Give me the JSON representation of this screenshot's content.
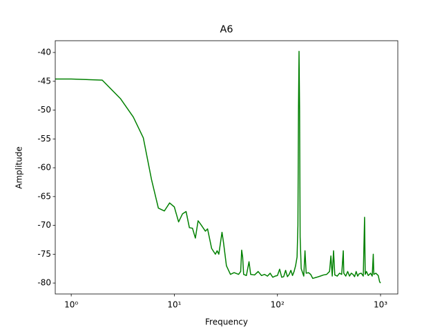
{
  "chart_data": {
    "type": "line",
    "title": "A6",
    "x_label": "Frequency",
    "y_label": "Amplitude",
    "x_scale": "log",
    "xlim": [
      0.7,
      1470
    ],
    "ylim": [
      -81.9,
      -37.96
    ],
    "xticks": [
      {
        "value": 1,
        "label": "10⁰"
      },
      {
        "value": 10,
        "label": "10¹"
      },
      {
        "value": 100,
        "label": "10²"
      },
      {
        "value": 1000,
        "label": "10³"
      }
    ],
    "yticks": [
      -40,
      -45,
      -50,
      -55,
      -60,
      -65,
      -70,
      -75,
      -80
    ],
    "series": [
      {
        "color": "#008000",
        "x": [
          0.7,
          1,
          2,
          3,
          4,
          5,
          6,
          7,
          8,
          9,
          10,
          11,
          12,
          13,
          14,
          15,
          16,
          17,
          18,
          20,
          21,
          23,
          25,
          26,
          27,
          29,
          30,
          32,
          35,
          38,
          42,
          44,
          45,
          46,
          47,
          50,
          53,
          55,
          60,
          65,
          70,
          75,
          80,
          85,
          90,
          95,
          100,
          105,
          110,
          115,
          120,
          125,
          130,
          135,
          140,
          145,
          150,
          155,
          158,
          160,
          162,
          164,
          166,
          170,
          180,
          185,
          190,
          200,
          210,
          220,
          240,
          260,
          280,
          300,
          320,
          330,
          340,
          350,
          360,
          380,
          400,
          420,
          435,
          440,
          460,
          480,
          500,
          520,
          540,
          560,
          580,
          600,
          620,
          650,
          680,
          700,
          710,
          730,
          760,
          800,
          830,
          850,
          860,
          900,
          950,
          980,
          1000
        ],
        "values": [
          -44.6,
          -44.6,
          -44.8,
          -48,
          -51.2,
          -54.8,
          -62,
          -67,
          -67.5,
          -66.1,
          -66.8,
          -69.4,
          -68,
          -67.6,
          -70.4,
          -70.5,
          -72.2,
          -69.2,
          -69.8,
          -71,
          -70.6,
          -74,
          -75,
          -74.4,
          -75,
          -71.2,
          -73,
          -77,
          -78.5,
          -78.2,
          -78.5,
          -78,
          -74.3,
          -75.5,
          -78.5,
          -78.7,
          -76.3,
          -78.5,
          -78.6,
          -78,
          -78.7,
          -78.5,
          -78.8,
          -78.3,
          -79,
          -78.8,
          -78.7,
          -77.6,
          -79,
          -78.9,
          -77.8,
          -78.9,
          -78.5,
          -77.8,
          -78.7,
          -78,
          -77,
          -75.5,
          -70,
          -50,
          -39.8,
          -50,
          -72,
          -77.5,
          -78.8,
          -74.4,
          -78.3,
          -78.2,
          -78.5,
          -79.2,
          -79,
          -78.8,
          -78.6,
          -78.5,
          -78,
          -75.3,
          -78.8,
          -74.4,
          -78.6,
          -78.8,
          -78.3,
          -78.5,
          -74.4,
          -78.3,
          -78.8,
          -78,
          -78.8,
          -78.3,
          -78.5,
          -78.9,
          -78,
          -78.8,
          -78.4,
          -78.3,
          -78.8,
          -68.6,
          -78.5,
          -78,
          -78.7,
          -78.3,
          -78.8,
          -75,
          -78.5,
          -78.3,
          -78.7,
          -79.8,
          -80
        ]
      }
    ]
  }
}
